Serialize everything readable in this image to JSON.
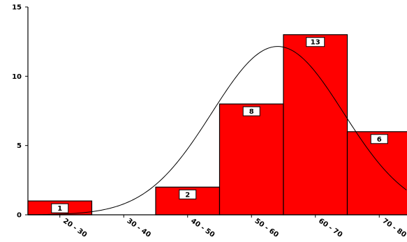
{
  "chart_data": {
    "type": "bar",
    "title": "",
    "xlabel": "",
    "ylabel": "",
    "categories": [
      "20 - 30",
      "30 - 40",
      "40 - 50",
      "50 - 60",
      "60 - 70",
      "70 - 80"
    ],
    "values": [
      1,
      0,
      2,
      8,
      13,
      6
    ],
    "data_labels": [
      "1",
      "",
      "2",
      "8",
      "13",
      "6"
    ],
    "ylim": [
      0,
      15
    ],
    "yticks": [
      "0",
      "5",
      "10",
      "15"
    ],
    "ytick_values": [
      0,
      5,
      10,
      15
    ],
    "bar_color": "#ff0000",
    "bar_edge_color": "#000000",
    "overlay": {
      "type": "normal-curve",
      "mean": 59.1,
      "sd": 10.3,
      "scale": 12.15,
      "color": "#000000"
    },
    "grid": false,
    "legend": "none"
  }
}
